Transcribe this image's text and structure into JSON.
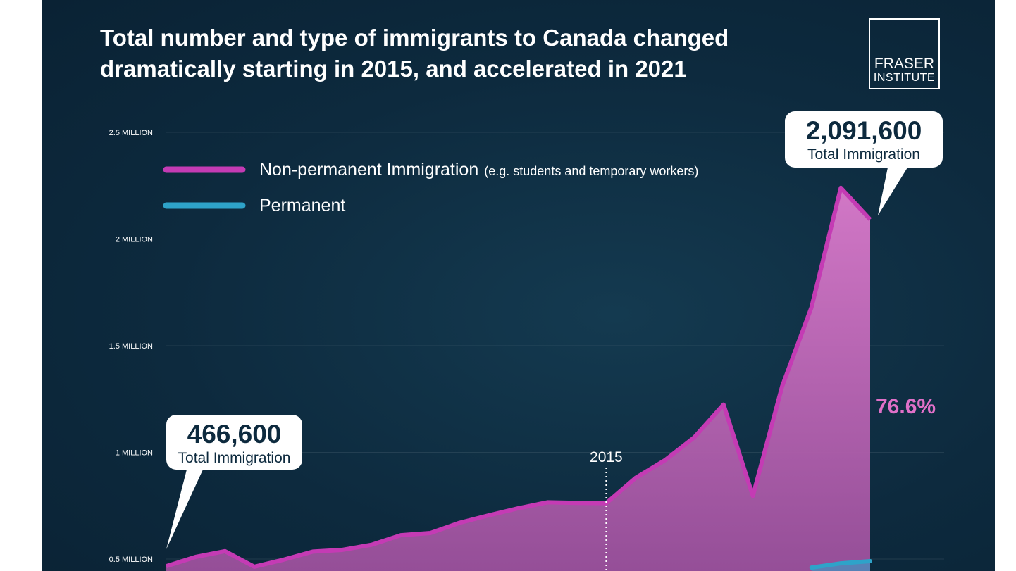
{
  "title_line1": "Total number and type of immigrants to Canada changed",
  "title_line2": "dramatically starting in 2015, and accelerated in 2021",
  "logo": {
    "line1": "FRASER",
    "line2": "INSTITUTE"
  },
  "colors": {
    "non_permanent": "#c43bb4",
    "non_permanent_fill": "#d777c8",
    "permanent": "#2ea3c9",
    "background": "#0d2a3e"
  },
  "chart_data": {
    "type": "area",
    "y_ticks": [
      {
        "value": 500000,
        "label": "0.5 MILLION"
      },
      {
        "value": 1000000,
        "label": "1 MILLION"
      },
      {
        "value": 1500000,
        "label": "1.5 MILLION"
      },
      {
        "value": 2000000,
        "label": "2 MILLION"
      },
      {
        "value": 2500000,
        "label": "2.5 MILLION"
      }
    ],
    "ylim": [
      500000,
      2500000
    ],
    "x": [
      2000,
      2001,
      2002,
      2003,
      2004,
      2005,
      2006,
      2007,
      2008,
      2009,
      2010,
      2011,
      2012,
      2013,
      2014,
      2015,
      2016,
      2017,
      2018,
      2019,
      2020,
      2021,
      2022,
      2023,
      2024
    ],
    "series": [
      {
        "name": "Non-permanent Immigration",
        "values": [
          466600,
          510000,
          537000,
          464000,
          497000,
          535000,
          543000,
          567000,
          612000,
          622000,
          670000,
          705000,
          738000,
          766000,
          763000,
          762000,
          880000,
          963000,
          1070000,
          1224000,
          796000,
          1310000,
          1680000,
          2240000,
          2091600
        ]
      },
      {
        "name": "Permanent",
        "values": [
          null,
          null,
          null,
          null,
          null,
          null,
          null,
          null,
          null,
          null,
          null,
          null,
          null,
          null,
          null,
          null,
          null,
          null,
          null,
          null,
          null,
          null,
          460000,
          480000,
          490000
        ]
      }
    ],
    "legend": [
      {
        "label": "Non-permanent Immigration",
        "note": "(e.g. students and temporary workers)",
        "series": "Non-permanent Immigration"
      },
      {
        "label": "Permanent",
        "note": "",
        "series": "Permanent"
      }
    ],
    "legend_position": "top-left",
    "marker": {
      "x": 2015,
      "label": "2015"
    },
    "callouts": [
      {
        "value": "466,600",
        "label": "Total Immigration",
        "x": 2000
      },
      {
        "value": "2,091,600",
        "label": "Total Immigration",
        "x": 2024
      }
    ],
    "share_label": "76.6%"
  }
}
